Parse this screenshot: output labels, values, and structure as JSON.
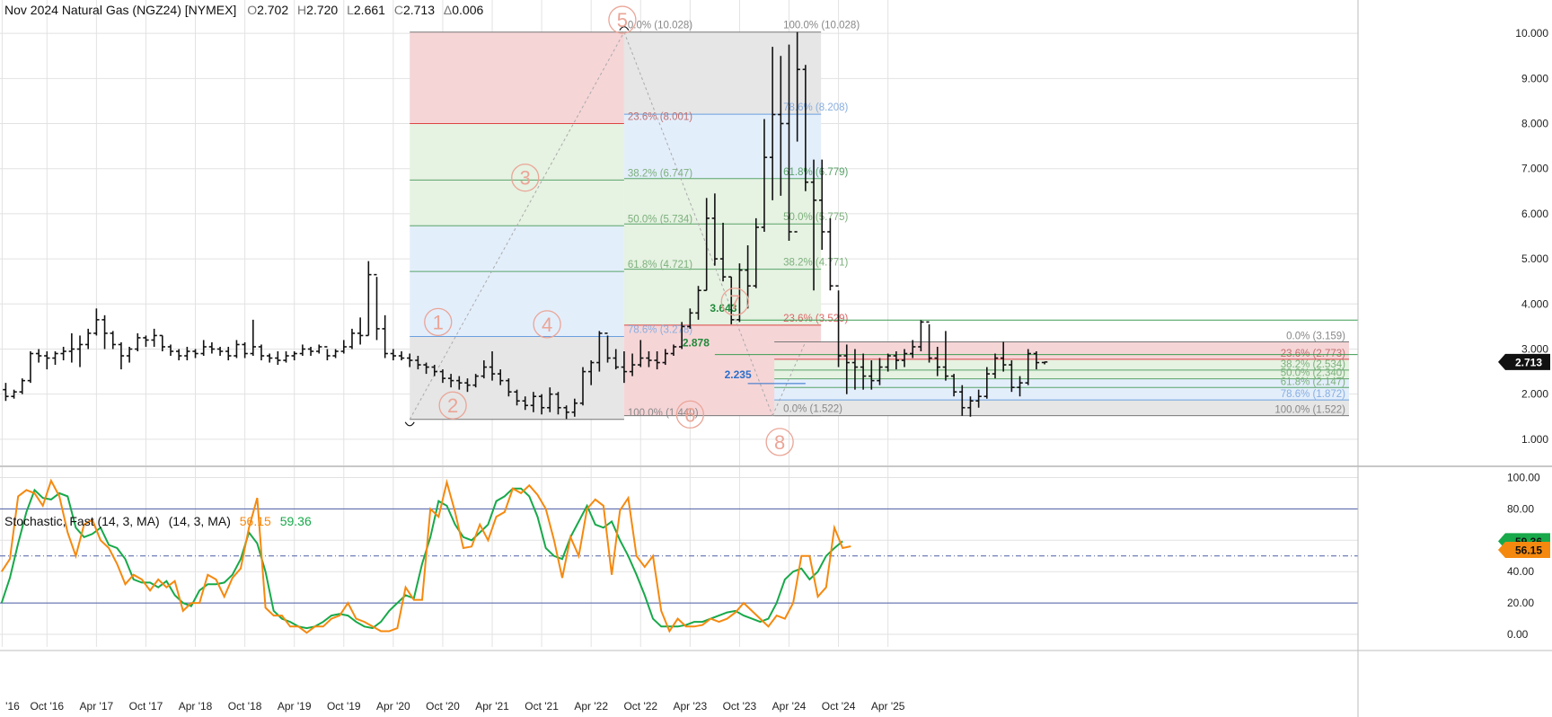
{
  "header": {
    "instrument": "Nov 2024 Natural Gas (NGZ24) [NYMEX]",
    "o_label": "O",
    "o_value": "2.702",
    "h_label": "H",
    "h_value": "2.720",
    "l_label": "L",
    "l_value": "2.661",
    "c_label": "C",
    "c_value": "2.713",
    "d_label": "Δ",
    "d_value": "0.006"
  },
  "colors": {
    "bars": "#111111",
    "fib_red": "#f6d5d7",
    "fib_green": "#e6f2e2",
    "fib_blue": "#e3eefb",
    "fib_gray": "#e6e6e6",
    "stoch_fast": "#f5890f",
    "stoch_slow": "#17a94a",
    "wave": "#eaa597",
    "grid": "#e2e2e2",
    "ref_line": "#4d5fa6"
  },
  "price_axis": {
    "ticks": [
      "1.000",
      "2.000",
      "3.000",
      "4.000",
      "5.000",
      "6.000",
      "7.000",
      "8.000",
      "9.000",
      "10.000"
    ],
    "last_price": "2.713"
  },
  "time_axis": {
    "ticks": [
      "'16",
      "Oct '16",
      "Apr '17",
      "Oct '17",
      "Apr '18",
      "Oct '18",
      "Apr '19",
      "Oct '19",
      "Apr '20",
      "Oct '20",
      "Apr '21",
      "Oct '21",
      "Apr '22",
      "Oct '22",
      "Apr '23",
      "Oct '23",
      "Apr '24",
      "Oct '24",
      "Apr '25"
    ]
  },
  "stochastic": {
    "title": "Stochastic, Fast (14, 3, MA)",
    "params": "(14, 3, MA)",
    "fast_value": "56.15",
    "slow_value": "59.36",
    "ticks": [
      "0.00",
      "20.00",
      "40.00",
      "60.00",
      "80.00",
      "100.00"
    ]
  },
  "fib_labels": {
    "a": [
      "0.0% (10.028)",
      "23.6% (8.001)",
      "38.2% (6.747)",
      "50.0% (5.734)",
      "61.8% (4.721)",
      "78.6% (3.278)",
      "100.0% (1.440)"
    ],
    "b": [
      "100.0% (10.028)",
      "78.6% (8.208)",
      "61.8% (6.779)",
      "50.0% (5.775)",
      "38.2% (4.771)",
      "23.6% (3.529)",
      "0.0% (1.522)"
    ],
    "c": [
      "0.0% (3.159)",
      "23.6% (2.773)",
      "38.2% (2.534)",
      "50.0% (2.340)",
      "61.8% (2.147)",
      "78.6% (1.872)",
      "100.0% (1.522)"
    ]
  },
  "annotations": {
    "price_3643": "3.643",
    "price_2878": "2.878",
    "price_2235": "2.235"
  },
  "waves": [
    "1",
    "2",
    "3",
    "4",
    "5",
    "6",
    "7",
    "8"
  ],
  "chart_data": {
    "type": "ohlc",
    "title": "Nov 2024 Natural Gas (NGZ24) [NYMEX]",
    "interval": "monthly",
    "start": "2016-05",
    "bars": [
      [
        2.1,
        2.25,
        1.85,
        1.95
      ],
      [
        1.95,
        2.1,
        1.9,
        2.05
      ],
      [
        2.05,
        2.35,
        2.0,
        2.3
      ],
      [
        2.3,
        2.95,
        2.25,
        2.9
      ],
      [
        2.9,
        3.0,
        2.7,
        2.85
      ],
      [
        2.85,
        2.95,
        2.55,
        2.8
      ],
      [
        2.8,
        2.95,
        2.65,
        2.9
      ],
      [
        2.9,
        3.05,
        2.75,
        2.95
      ],
      [
        2.95,
        3.35,
        2.7,
        3.0
      ],
      [
        3.0,
        3.3,
        2.6,
        3.1
      ],
      [
        3.1,
        3.45,
        3.0,
        3.35
      ],
      [
        3.35,
        3.9,
        3.3,
        3.65
      ],
      [
        3.65,
        3.75,
        3.0,
        3.35
      ],
      [
        3.35,
        3.4,
        3.0,
        3.1
      ],
      [
        3.1,
        3.15,
        2.55,
        2.85
      ],
      [
        2.85,
        3.05,
        2.7,
        3.0
      ],
      [
        3.0,
        3.35,
        2.95,
        3.25
      ],
      [
        3.25,
        3.3,
        3.05,
        3.2
      ],
      [
        3.2,
        3.45,
        3.05,
        3.3
      ],
      [
        3.3,
        3.3,
        2.95,
        3.05
      ],
      [
        3.05,
        3.1,
        2.85,
        2.95
      ],
      [
        2.95,
        3.0,
        2.75,
        2.85
      ],
      [
        2.85,
        3.05,
        2.75,
        2.95
      ],
      [
        2.95,
        3.0,
        2.8,
        2.9
      ],
      [
        2.9,
        3.2,
        2.85,
        3.05
      ],
      [
        3.05,
        3.15,
        2.9,
        3.0
      ],
      [
        3.0,
        3.05,
        2.85,
        2.95
      ],
      [
        2.95,
        3.05,
        2.75,
        2.85
      ],
      [
        2.85,
        3.2,
        2.8,
        3.1
      ],
      [
        3.1,
        3.15,
        2.8,
        2.9
      ],
      [
        2.9,
        3.65,
        2.85,
        3.05
      ],
      [
        3.05,
        3.1,
        2.75,
        2.85
      ],
      [
        2.85,
        2.9,
        2.7,
        2.8
      ],
      [
        2.8,
        2.95,
        2.65,
        2.75
      ],
      [
        2.75,
        2.95,
        2.7,
        2.85
      ],
      [
        2.85,
        2.95,
        2.75,
        2.9
      ],
      [
        2.9,
        3.1,
        2.85,
        3.0
      ],
      [
        3.0,
        3.05,
        2.85,
        2.95
      ],
      [
        2.95,
        3.1,
        2.9,
        3.05
      ],
      [
        3.05,
        3.0,
        2.75,
        2.85
      ],
      [
        2.85,
        3.0,
        2.8,
        2.95
      ],
      [
        2.95,
        3.2,
        2.9,
        3.05
      ],
      [
        3.05,
        3.45,
        3.0,
        3.35
      ],
      [
        3.35,
        3.7,
        3.1,
        3.3
      ],
      [
        3.3,
        4.95,
        3.3,
        4.65
      ],
      [
        4.65,
        4.6,
        3.2,
        3.45
      ],
      [
        3.45,
        3.75,
        2.8,
        2.9
      ],
      [
        2.9,
        3.0,
        2.75,
        2.85
      ],
      [
        2.85,
        2.95,
        2.75,
        2.8
      ],
      [
        2.8,
        2.9,
        2.6,
        2.75
      ],
      [
        2.75,
        2.85,
        2.55,
        2.65
      ],
      [
        2.65,
        2.7,
        2.45,
        2.6
      ],
      [
        2.6,
        2.65,
        2.4,
        2.5
      ],
      [
        2.5,
        2.55,
        2.25,
        2.35
      ],
      [
        2.35,
        2.45,
        2.15,
        2.3
      ],
      [
        2.3,
        2.4,
        2.1,
        2.25
      ],
      [
        2.25,
        2.35,
        2.05,
        2.2
      ],
      [
        2.2,
        2.45,
        2.15,
        2.4
      ],
      [
        2.4,
        2.75,
        2.35,
        2.6
      ],
      [
        2.6,
        2.95,
        2.3,
        2.45
      ],
      [
        2.45,
        2.55,
        2.2,
        2.3
      ],
      [
        2.3,
        2.35,
        1.95,
        2.05
      ],
      [
        2.05,
        2.1,
        1.75,
        1.85
      ],
      [
        1.85,
        1.95,
        1.65,
        1.75
      ],
      [
        1.75,
        2.05,
        1.6,
        1.95
      ],
      [
        1.95,
        2.0,
        1.55,
        1.7
      ],
      [
        1.7,
        2.15,
        1.6,
        2.0
      ],
      [
        2.0,
        2.05,
        1.55,
        1.7
      ],
      [
        1.7,
        1.75,
        1.45,
        1.6
      ],
      [
        1.6,
        1.9,
        1.5,
        1.8
      ],
      [
        1.8,
        2.6,
        1.75,
        2.5
      ],
      [
        2.5,
        2.75,
        2.2,
        2.7
      ],
      [
        2.7,
        3.4,
        2.5,
        3.35
      ],
      [
        3.35,
        3.3,
        2.7,
        2.8
      ],
      [
        2.8,
        3.0,
        2.55,
        2.6
      ],
      [
        2.6,
        2.95,
        2.25,
        2.5
      ],
      [
        2.5,
        2.9,
        2.4,
        2.65
      ],
      [
        2.65,
        3.2,
        2.6,
        2.8
      ],
      [
        2.8,
        2.95,
        2.6,
        2.75
      ],
      [
        2.75,
        2.95,
        2.55,
        2.7
      ],
      [
        2.7,
        3.0,
        2.65,
        2.9
      ],
      [
        2.9,
        3.1,
        2.85,
        3.05
      ],
      [
        3.05,
        3.6,
        3.0,
        3.5
      ],
      [
        3.5,
        3.9,
        3.45,
        3.8
      ],
      [
        3.8,
        4.4,
        3.65,
        4.3
      ],
      [
        4.3,
        6.35,
        4.3,
        5.9
      ],
      [
        5.9,
        6.45,
        4.85,
        5.0
      ],
      [
        5.0,
        5.8,
        4.5,
        4.6
      ],
      [
        4.6,
        4.6,
        3.55,
        3.65
      ],
      [
        3.65,
        4.9,
        3.6,
        4.75
      ],
      [
        4.75,
        5.3,
        3.9,
        4.4
      ],
      [
        4.4,
        5.9,
        4.35,
        5.7
      ],
      [
        5.7,
        8.1,
        5.6,
        7.25
      ],
      [
        7.25,
        9.7,
        6.3,
        8.2
      ],
      [
        8.2,
        9.5,
        6.4,
        8.0
      ],
      [
        8.0,
        9.75,
        5.4,
        5.6
      ],
      [
        5.6,
        10.03,
        7.6,
        9.2
      ],
      [
        9.2,
        9.3,
        6.5,
        6.7
      ],
      [
        6.7,
        7.2,
        4.3,
        6.3
      ],
      [
        6.3,
        7.2,
        5.2,
        5.6
      ],
      [
        5.6,
        5.9,
        4.3,
        4.4
      ],
      [
        4.4,
        4.3,
        2.6,
        2.85
      ],
      [
        2.85,
        3.1,
        2.0,
        2.7
      ],
      [
        2.7,
        3.0,
        2.1,
        2.6
      ],
      [
        2.6,
        2.9,
        2.1,
        2.4
      ],
      [
        2.4,
        2.75,
        2.1,
        2.3
      ],
      [
        2.3,
        2.8,
        2.2,
        2.6
      ],
      [
        2.6,
        2.9,
        2.5,
        2.85
      ],
      [
        2.85,
        2.95,
        2.55,
        2.75
      ],
      [
        2.75,
        3.0,
        2.6,
        2.9
      ],
      [
        2.9,
        3.2,
        2.8,
        3.05
      ],
      [
        3.05,
        3.64,
        2.95,
        3.6
      ],
      [
        3.6,
        3.55,
        2.7,
        2.8
      ],
      [
        2.8,
        3.05,
        2.4,
        2.6
      ],
      [
        2.6,
        3.4,
        2.3,
        2.4
      ],
      [
        2.4,
        2.45,
        1.95,
        2.05
      ],
      [
        2.05,
        2.2,
        1.52,
        1.7
      ],
      [
        1.7,
        1.95,
        1.5,
        1.85
      ],
      [
        1.85,
        2.1,
        1.7,
        1.95
      ],
      [
        1.95,
        2.6,
        1.9,
        2.45
      ],
      [
        2.45,
        2.9,
        2.35,
        2.8
      ],
      [
        2.8,
        3.16,
        2.5,
        2.65
      ],
      [
        2.65,
        2.75,
        2.05,
        2.15
      ],
      [
        2.15,
        2.4,
        1.95,
        2.25
      ],
      [
        2.25,
        3.0,
        2.2,
        2.9
      ],
      [
        2.9,
        2.95,
        2.55,
        2.7
      ],
      [
        2.702,
        2.72,
        2.661,
        2.713
      ]
    ],
    "stoch_fast": [
      40,
      48,
      88,
      92,
      90,
      82,
      98,
      88,
      65,
      50,
      70,
      73,
      60,
      55,
      45,
      32,
      38,
      35,
      28,
      35,
      30,
      34,
      15,
      20,
      20,
      38,
      35,
      24,
      36,
      42,
      68,
      87,
      17,
      12,
      12,
      5,
      5,
      1,
      5,
      5,
      10,
      12,
      20,
      10,
      8,
      5,
      2,
      2,
      4,
      30,
      22,
      22,
      80,
      75,
      97,
      78,
      55,
      56,
      70,
      60,
      75,
      78,
      93,
      90,
      95,
      89,
      80,
      60,
      36,
      62,
      50,
      80,
      86,
      82,
      38,
      79,
      87,
      50,
      43,
      50,
      15,
      2,
      10,
      5,
      5,
      6,
      10,
      8,
      10,
      14,
      20,
      15,
      10,
      5,
      12,
      10,
      20,
      50,
      50,
      24,
      30,
      68,
      55,
      56.15
    ],
    "stoch_slow": [
      20,
      36,
      58,
      78,
      92,
      87,
      86,
      90,
      88,
      68,
      62,
      64,
      68,
      57,
      55,
      48,
      35,
      33,
      33,
      30,
      34,
      25,
      20,
      18,
      28,
      32,
      32,
      33,
      38,
      48,
      65,
      58,
      40,
      15,
      10,
      8,
      5,
      4,
      5,
      8,
      12,
      13,
      12,
      8,
      5,
      4,
      8,
      15,
      20,
      25,
      23,
      45,
      62,
      85,
      82,
      70,
      62,
      60,
      65,
      70,
      85,
      88,
      93,
      93,
      88,
      75,
      55,
      50,
      48,
      62,
      72,
      82,
      70,
      68,
      72,
      60,
      50,
      38,
      25,
      10,
      5,
      5,
      5,
      6,
      8,
      8,
      10,
      12,
      14,
      15,
      12,
      10,
      8,
      10,
      20,
      35,
      40,
      42,
      35,
      40,
      50,
      55,
      59.36
    ],
    "stoch_start_offset": -0.5,
    "ylim": [
      0.4,
      10.6
    ],
    "stoch_ylim": [
      -8,
      106
    ],
    "stoch_levels": [
      80,
      50,
      20
    ],
    "fib_sets": [
      {
        "from_date": "2020-06",
        "to_date": "2022-08",
        "low": 1.44,
        "high": 10.028,
        "levels": [
          10.028,
          8.001,
          6.747,
          5.734,
          4.721,
          3.278,
          1.44
        ]
      },
      {
        "from_date": "2022-08",
        "to_date": "2024-02",
        "low": 1.522,
        "high": 10.028,
        "levels": [
          10.028,
          8.208,
          6.779,
          5.775,
          4.771,
          3.529,
          1.522
        ]
      },
      {
        "from_date": "2024-02",
        "to_date": "2024-11",
        "low": 1.522,
        "high": 3.159,
        "levels": [
          3.159,
          2.773,
          2.534,
          2.34,
          2.147,
          1.872,
          1.522
        ]
      }
    ]
  }
}
